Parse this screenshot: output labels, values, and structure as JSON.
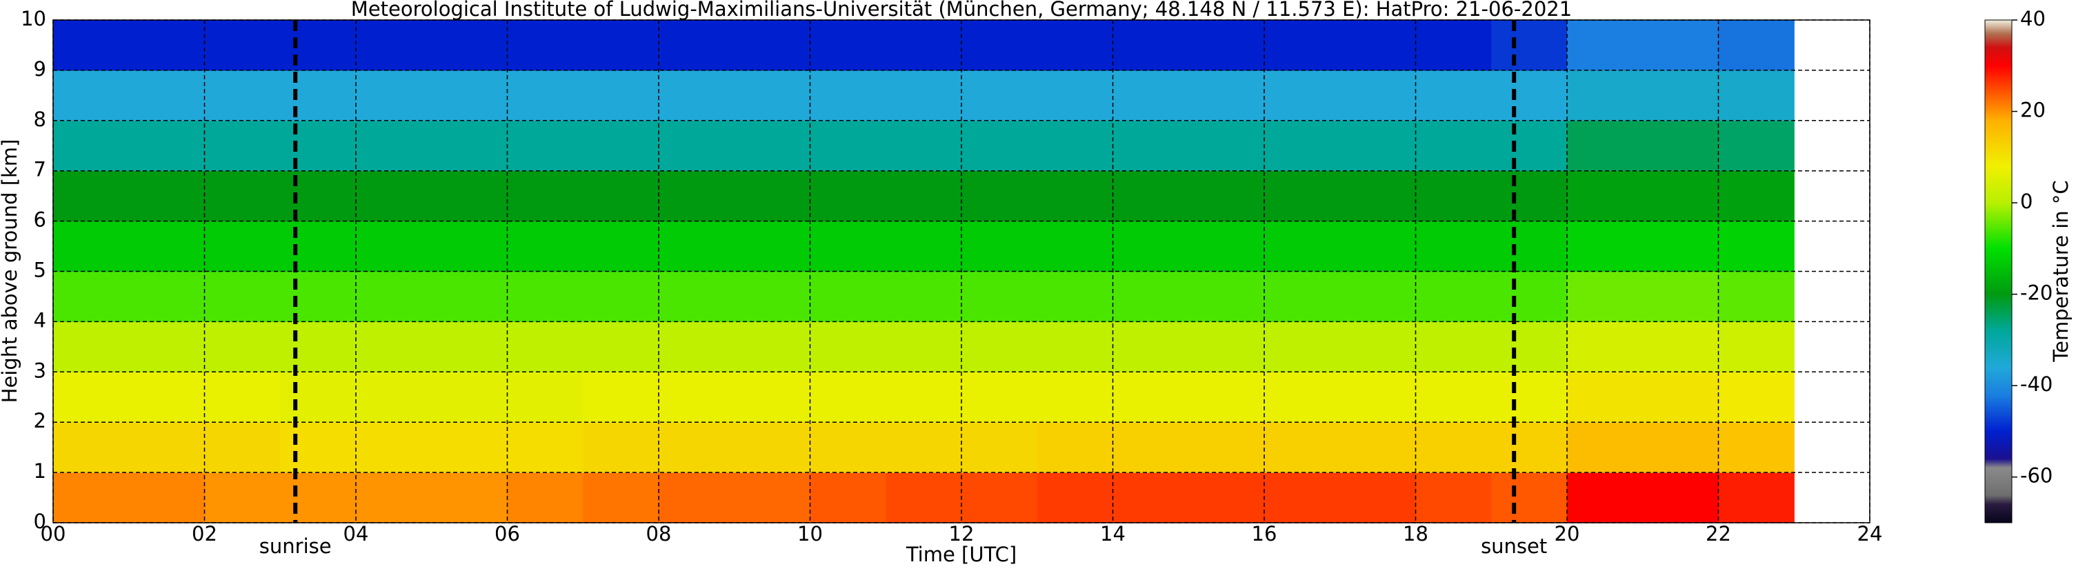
{
  "chart_data": {
    "type": "heatmap",
    "title": "Meteorological Institute of Ludwig-Maximilians-Universität (München, Germany; 48.148 N / 11.573 E):    HatPro: 21-06-2021",
    "xlabel": "Time [UTC]",
    "ylabel": "Height above ground [km]",
    "x": [
      0,
      1,
      2,
      3,
      4,
      5,
      6,
      7,
      8,
      9,
      10,
      11,
      12,
      13,
      14,
      15,
      16,
      17,
      18,
      19,
      20,
      21,
      22,
      23
    ],
    "y": [
      0,
      1,
      2,
      3,
      4,
      5,
      6,
      7,
      8,
      9,
      10
    ],
    "z": [
      [
        21,
        21,
        20,
        20,
        20,
        20,
        21,
        22,
        23,
        23,
        24,
        25,
        25,
        26,
        26,
        26,
        26,
        26,
        25,
        24,
        30,
        30,
        28
      ],
      [
        12,
        12,
        12,
        11,
        11,
        11,
        11,
        12,
        12,
        12,
        12,
        12,
        12,
        13,
        13,
        13,
        13,
        13,
        13,
        13,
        16,
        16,
        15
      ],
      [
        7,
        7,
        7,
        6,
        6,
        6,
        6,
        7,
        7,
        7,
        7,
        7,
        7,
        7,
        7,
        7,
        7,
        7,
        7,
        7,
        10,
        10,
        9
      ],
      [
        1,
        1,
        1,
        1,
        1,
        1,
        1,
        1,
        1,
        1,
        1,
        1,
        1,
        1,
        1,
        1,
        1,
        1,
        1,
        1,
        4,
        4,
        3
      ],
      [
        -6,
        -6,
        -6,
        -6,
        -6,
        -6,
        -6,
        -6,
        -6,
        -6,
        -6,
        -6,
        -6,
        -6,
        -6,
        -6,
        -6,
        -6,
        -6,
        -6,
        -4,
        -4,
        -5
      ],
      [
        -13,
        -13,
        -13,
        -13,
        -13,
        -13,
        -13,
        -13,
        -13,
        -13,
        -13,
        -13,
        -13,
        -13,
        -13,
        -13,
        -13,
        -13,
        -13,
        -13,
        -12,
        -12,
        -12
      ],
      [
        -20,
        -20,
        -20,
        -20,
        -20,
        -20,
        -20,
        -20,
        -20,
        -20,
        -20,
        -20,
        -20,
        -20,
        -20,
        -20,
        -20,
        -20,
        -20,
        -20,
        -19,
        -19,
        -19
      ],
      [
        -28,
        -28,
        -28,
        -28,
        -28,
        -28,
        -28,
        -28,
        -28,
        -28,
        -28,
        -28,
        -28,
        -28,
        -28,
        -28,
        -28,
        -28,
        -28,
        -28,
        -24,
        -24,
        -25
      ],
      [
        -36,
        -36,
        -36,
        -36,
        -36,
        -36,
        -36,
        -36,
        -36,
        -36,
        -36,
        -36,
        -36,
        -36,
        -36,
        -36,
        -36,
        -36,
        -36,
        -36,
        -34,
        -34,
        -34
      ],
      [
        -50,
        -50,
        -50,
        -50,
        -50,
        -50,
        -50,
        -50,
        -50,
        -50,
        -50,
        -50,
        -50,
        -50,
        -50,
        -50,
        -50,
        -50,
        -50,
        -48,
        -42,
        -42,
        -43
      ]
    ],
    "xlim": [
      0,
      24
    ],
    "ylim": [
      0,
      10
    ],
    "xticks": [
      {
        "value": 0,
        "label": "00"
      },
      {
        "value": 2,
        "label": "02"
      },
      {
        "value": 4,
        "label": "04"
      },
      {
        "value": 6,
        "label": "06"
      },
      {
        "value": 8,
        "label": "08"
      },
      10,
      12,
      14,
      16,
      18,
      20,
      22,
      24
    ],
    "yticks": [
      0,
      1,
      2,
      3,
      4,
      5,
      6,
      7,
      8,
      9,
      10
    ],
    "grid": true,
    "markers": [
      {
        "x": 3.2,
        "label": "sunrise"
      },
      {
        "x": 19.3,
        "label": "sunset"
      }
    ],
    "colorbar": {
      "label": "Temperature in °C",
      "lim": [
        -70,
        40
      ],
      "ticks": [
        40,
        20,
        0,
        -20,
        -40,
        -60
      ]
    },
    "colormap": [
      {
        "value": -70,
        "color": "#05051a"
      },
      {
        "value": -66,
        "color": "#2a1a40"
      },
      {
        "value": -64,
        "color": "#6e6e6e"
      },
      {
        "value": -58,
        "color": "#8a8a8a"
      },
      {
        "value": -56,
        "color": "#1a0f8f"
      },
      {
        "value": -50,
        "color": "#0020d0"
      },
      {
        "value": -42,
        "color": "#1a7fe0"
      },
      {
        "value": -36,
        "color": "#20a8d8"
      },
      {
        "value": -28,
        "color": "#00a89a"
      },
      {
        "value": -20,
        "color": "#009a10"
      },
      {
        "value": -10,
        "color": "#00e000"
      },
      {
        "value": 0,
        "color": "#b8f000"
      },
      {
        "value": 8,
        "color": "#f0f000"
      },
      {
        "value": 18,
        "color": "#ffb000"
      },
      {
        "value": 30,
        "color": "#ff0000"
      },
      {
        "value": 34,
        "color": "#d01010"
      },
      {
        "value": 37,
        "color": "#b07050"
      },
      {
        "value": 40,
        "color": "#f0f0e0"
      }
    ]
  }
}
